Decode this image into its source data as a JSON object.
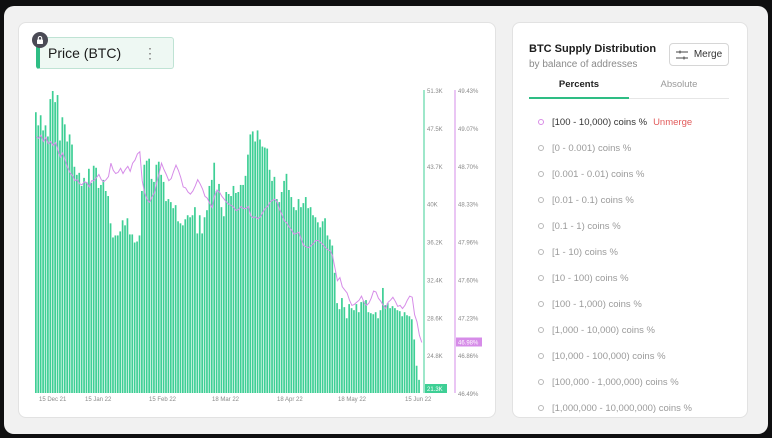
{
  "metric": {
    "label": "Price (BTC)"
  },
  "chart_data": {
    "type": "bar",
    "title": "",
    "xlabel": "",
    "ylabel": "",
    "x_tick_labels": [
      "15 Dec 21",
      "15 Jan 22",
      "15 Feb 22",
      "18 Mar 22",
      "18 Apr 22",
      "18 May 22",
      "15 Jun 22"
    ],
    "y_left_ticks": [
      "51.3K",
      "47.5K",
      "43.7K",
      "40K",
      "36.2K",
      "32.4K",
      "28.6K",
      "24.8K"
    ],
    "y_right_ticks": [
      "49.43%",
      "49.07%",
      "48.70%",
      "48.33%",
      "47.96%",
      "47.60%",
      "47.23%",
      "46.86%",
      "46.49%"
    ],
    "ylim": [
      21300,
      51300
    ],
    "y2lim": [
      46.49,
      49.43
    ],
    "current_price_label": "21.3K",
    "current_percent_label": "46.98%",
    "series": [
      {
        "name": "Price (BTC)",
        "color": "#3ecf95",
        "axis": "left",
        "values": [
          49100,
          47800,
          48800,
          47300,
          47800,
          46700,
          50400,
          51200,
          50100,
          50800,
          46300,
          48600,
          47900,
          46200,
          46900,
          45900,
          43700,
          42900,
          43100,
          41800,
          42600,
          42200,
          43500,
          42100,
          43800,
          43600,
          41600,
          41900,
          42400,
          41300,
          40800,
          38100,
          36700,
          36900,
          36900,
          37300,
          38400,
          37900,
          38600,
          37000,
          37000,
          36200,
          36300,
          36900,
          41300,
          43900,
          44300,
          44500,
          42500,
          42200,
          43900,
          44200,
          42900,
          42200,
          40300,
          40500,
          40200,
          39600,
          39900,
          38300,
          38100,
          37900,
          38500,
          38900,
          38700,
          38900,
          39700,
          37100,
          38900,
          37100,
          38700,
          39400,
          41800,
          42400,
          44100,
          41300,
          42000,
          39700,
          38800,
          41200,
          41000,
          40800,
          41800,
          41100,
          41200,
          41900,
          41900,
          42800,
          44900,
          46900,
          47200,
          46200,
          47300,
          46400,
          45700,
          45600,
          45500,
          43400,
          42300,
          42700,
          40500,
          40200,
          41200,
          42300,
          43000,
          41400,
          40700,
          39700,
          39400,
          40500,
          39700,
          40100,
          40700,
          39600,
          39700,
          38900,
          38700,
          38200,
          37700,
          38300,
          38600,
          36900,
          36500,
          35900,
          33200,
          30200,
          29600,
          30700,
          29800,
          28700,
          30100,
          29700,
          29500,
          30100,
          29300,
          30300,
          30400,
          30500,
          29300,
          29200,
          29100,
          29300,
          28700,
          29500,
          31700,
          30000,
          30200,
          29700,
          29900,
          29700,
          29500,
          29400,
          28900,
          29300,
          29000,
          28900,
          28600,
          26600,
          24000,
          22600,
          21300
        ]
      },
      {
        "name": "[100 - 10,000) coins %",
        "color": "#d68ce8",
        "axis": "right",
        "values": [
          48.98,
          48.96,
          48.99,
          48.93,
          48.97,
          48.91,
          48.93,
          48.89,
          48.92,
          48.85,
          48.78,
          48.82,
          48.75,
          48.68,
          48.63,
          48.6,
          48.55,
          48.56,
          48.52,
          48.51,
          48.54,
          48.53,
          48.49,
          48.55,
          48.55,
          48.58,
          48.61,
          48.56,
          48.54,
          48.56,
          48.59,
          48.72,
          48.65,
          48.62,
          48.63,
          48.67,
          48.62,
          48.66,
          48.69,
          48.64,
          48.72,
          48.75,
          48.81,
          48.83,
          48.55,
          48.43,
          48.37,
          48.34,
          48.39,
          48.43,
          48.53,
          48.62,
          48.72,
          48.66,
          48.61,
          48.55,
          48.57,
          48.64,
          48.7,
          48.65,
          48.58,
          48.49,
          48.48,
          48.44,
          48.42,
          48.45,
          48.5,
          48.56,
          48.52,
          48.47,
          48.4,
          48.38,
          48.33,
          48.29,
          48.4,
          48.46,
          48.44,
          48.4,
          48.37,
          48.34,
          48.32,
          48.31,
          48.29,
          48.26,
          48.27,
          48.3,
          48.28,
          48.28,
          48.3,
          48.21,
          48.19,
          48.2,
          48.18,
          48.2,
          48.24,
          48.28,
          48.3,
          48.34,
          48.36,
          48.37,
          48.34,
          48.27,
          48.22,
          48.16,
          48.14,
          48.1,
          48.07,
          48.03,
          48.04,
          48.05,
          47.98,
          47.92,
          47.91,
          47.9,
          47.92,
          47.94,
          47.97,
          47.97,
          47.95,
          47.93,
          47.9,
          47.88,
          47.87,
          47.82,
          47.7,
          47.58,
          47.61,
          47.52,
          47.49,
          47.46,
          47.39,
          47.34,
          47.35,
          47.37,
          47.39,
          47.43,
          47.37,
          47.34,
          47.36,
          47.41,
          47.48,
          47.47,
          47.41,
          47.38,
          47.34,
          47.31,
          47.37,
          47.39,
          47.42,
          47.38,
          47.33,
          47.34,
          47.31,
          47.34,
          47.39,
          47.43,
          47.42,
          47.25,
          47.18,
          47.05,
          46.98
        ]
      }
    ]
  },
  "panel": {
    "title": "BTC Supply Distribution",
    "subtitle": "by balance of addresses",
    "merge_label": "Merge",
    "tabs": [
      "Percents",
      "Absolute"
    ],
    "unmerge_label": "Unmerge",
    "items": [
      "[100 - 10,000) coins %",
      "[0 - 0.001) coins %",
      "[0.001 - 0.01) coins %",
      "[0.01 - 0.1) coins %",
      "[0.1 - 1) coins %",
      "[1 - 10) coins %",
      "[10 - 100) coins %",
      "[100 - 1,000) coins %",
      "[1,000 - 10,000) coins %",
      "[10,000 - 100,000) coins %",
      "[100,000 - 1,000,000) coins %",
      "[1,000,000 - 10,000,000) coins %"
    ]
  }
}
